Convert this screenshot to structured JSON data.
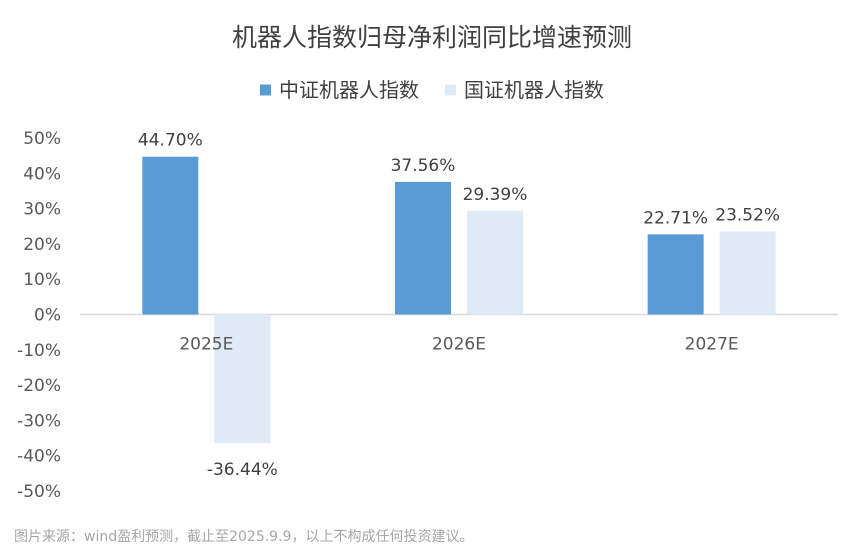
{
  "chart_data": {
    "type": "bar",
    "title": "机器人指数归母净利润同比增速预测",
    "categories": [
      "2025E",
      "2026E",
      "2027E"
    ],
    "series": [
      {
        "name": "中证机器人指数",
        "values": [
          44.7,
          37.56,
          22.71
        ],
        "labels": [
          "44.70%",
          "37.56%",
          "22.71%"
        ],
        "color": "#5b9bd5"
      },
      {
        "name": "国证机器人指数",
        "values": [
          -36.44,
          29.39,
          23.52
        ],
        "labels": [
          "-36.44%",
          "29.39%",
          "23.52%"
        ],
        "color": "#deebf7"
      }
    ],
    "ylim": [
      -50,
      50
    ],
    "yticks": [
      50,
      40,
      30,
      20,
      10,
      0,
      -10,
      -20,
      -30,
      -40,
      -50
    ],
    "ytick_labels": [
      "50%",
      "40%",
      "30%",
      "20%",
      "10%",
      "0%",
      "-10%",
      "-20%",
      "-30%",
      "-40%",
      "-50%"
    ],
    "xlabel": "",
    "ylabel": "",
    "grid": false,
    "legend": "top"
  },
  "footnote": "图片来源：wind盈利预测，截止至2025.9.9，以上不构成任何投资建议。"
}
